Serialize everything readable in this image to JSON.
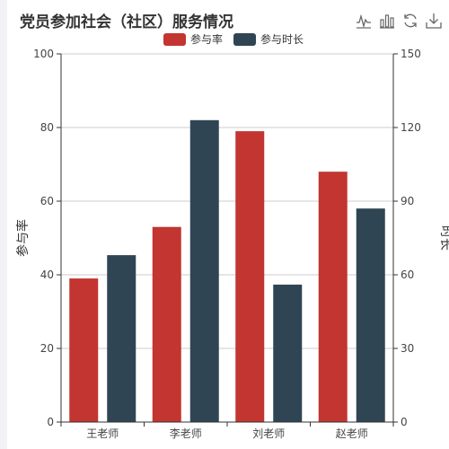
{
  "chart_data": {
    "type": "bar",
    "title": "党员参加社会（社区）服务情况",
    "categories": [
      "王老师",
      "李老师",
      "刘老师",
      "赵老师"
    ],
    "series": [
      {
        "name": "参与率",
        "values": [
          39,
          53,
          79,
          68
        ],
        "color": "#c23531",
        "yAxis": "left"
      },
      {
        "name": "参与时长",
        "values": [
          68,
          123,
          56,
          87
        ],
        "color": "#2f4554",
        "yAxis": "right"
      }
    ],
    "y_left": {
      "label": "参与率",
      "range": [
        0,
        100
      ],
      "ticks": [
        0,
        20,
        40,
        60,
        80,
        100
      ]
    },
    "y_right": {
      "label": "时长",
      "range": [
        0,
        150
      ],
      "ticks": [
        0,
        30,
        60,
        90,
        120,
        150
      ]
    },
    "grid": true,
    "legend_position": "top-center"
  },
  "toolbox": {
    "icons": [
      "line-chart-icon",
      "bar-chart-icon",
      "restore-icon",
      "save-image-icon"
    ]
  }
}
